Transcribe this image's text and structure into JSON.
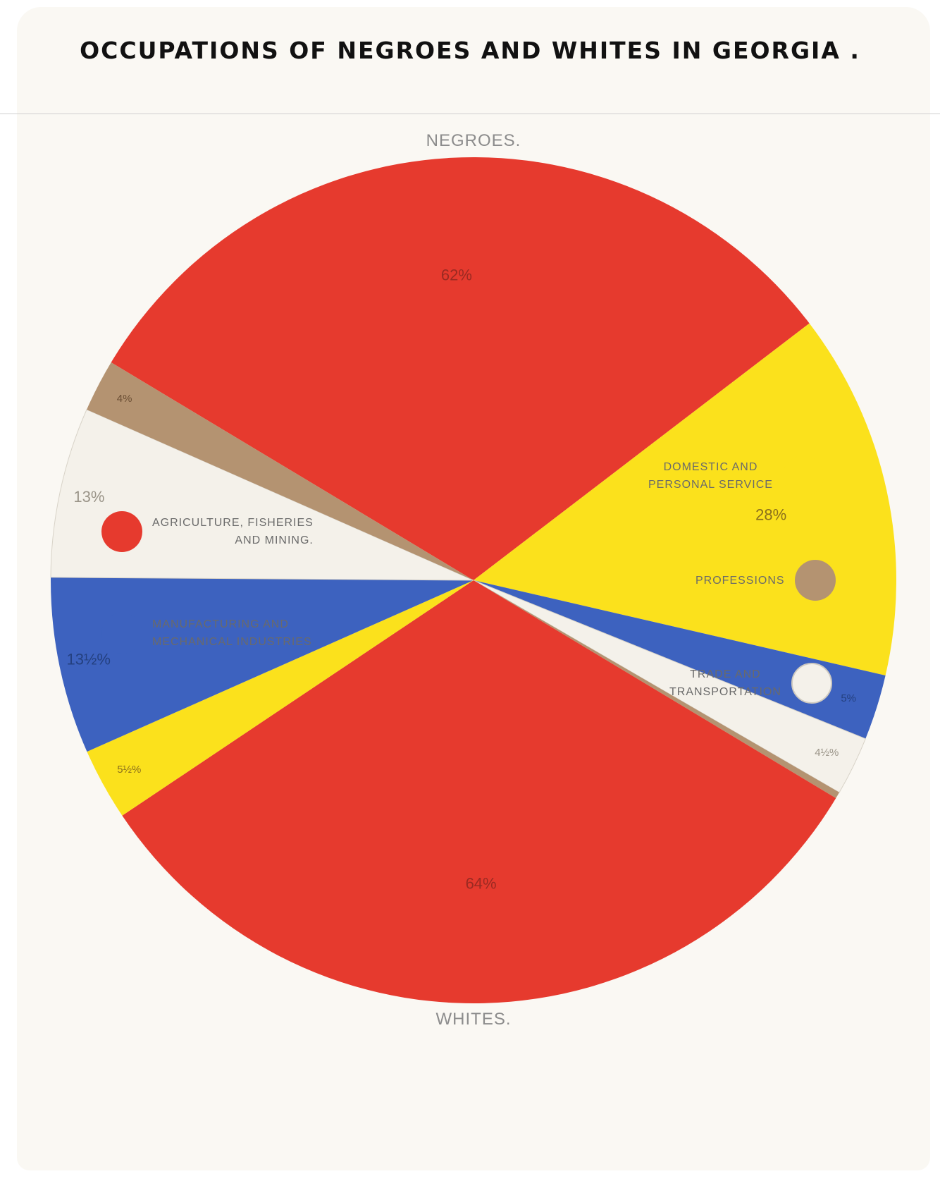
{
  "title": "OCCUPATIONS OF NEGROES AND WHITES IN GEORGIA .",
  "colors": {
    "agriculture": "#e63a2e",
    "domestic": "#fbe11c",
    "manufacturing": "#3d62bf",
    "trade": "#f4f1ea",
    "professions": "#b49371",
    "background": "#faf8f3"
  },
  "legend": {
    "agriculture": {
      "line1": "AGRICULTURE, FISHERIES",
      "line2": "AND MINING."
    },
    "manufacturing": {
      "line1": "MANUFACTURING AND",
      "line2": "MECHANICAL INDUSTRIES"
    },
    "domestic": {
      "line1": "DOMESTIC AND",
      "line2": "PERSONAL SERVICE"
    },
    "professions": {
      "line1": "PROFESSIONS",
      "line2": ""
    },
    "trade": {
      "line1": "TRADE AND",
      "line2": "TRANSPORTATION"
    }
  },
  "chart_data": {
    "type": "pie",
    "layout": "two half-pies sharing one centre (Negroes top, Whites bottom)",
    "groups": [
      {
        "name": "NEGROES.",
        "position": "top",
        "slices": [
          {
            "category": "agriculture",
            "value": 62,
            "label": "62%"
          },
          {
            "category": "domestic",
            "value": 28,
            "label": "28%"
          },
          {
            "category": "manufacturing",
            "value": 5,
            "label": "5%"
          },
          {
            "category": "trade",
            "value": 4.5,
            "label": "4½%"
          },
          {
            "category": "professions",
            "value": 0.5,
            "label": ""
          }
        ]
      },
      {
        "name": "WHITES.",
        "position": "bottom",
        "slices": [
          {
            "category": "agriculture",
            "value": 64,
            "label": "64%"
          },
          {
            "category": "domestic",
            "value": 5.5,
            "label": "5½%"
          },
          {
            "category": "manufacturing",
            "value": 13.5,
            "label": "13½%"
          },
          {
            "category": "trade",
            "value": 13,
            "label": "13%"
          },
          {
            "category": "professions",
            "value": 4,
            "label": "4%"
          }
        ]
      }
    ]
  }
}
